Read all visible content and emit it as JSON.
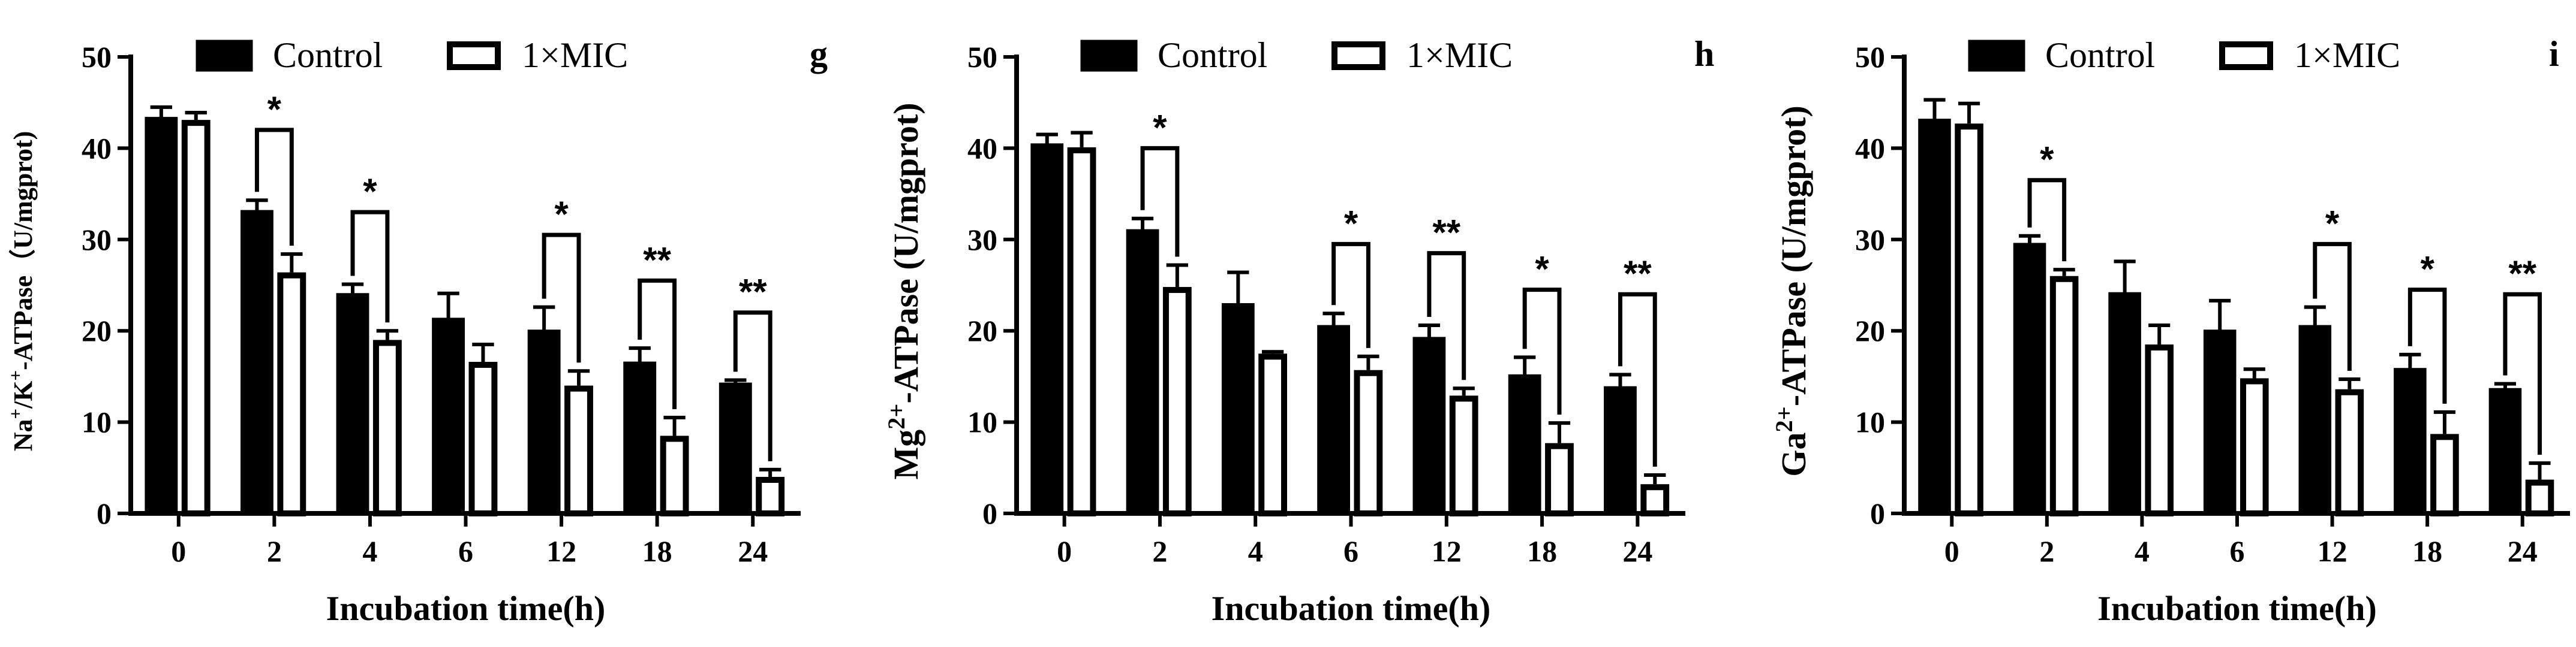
{
  "legend": {
    "control": "Control",
    "mic": "1×MIC"
  },
  "colors": {
    "control": "#000000",
    "mic": "#ffffff",
    "stroke": "#000000"
  },
  "chart_data": [
    {
      "type": "bar",
      "panel": "g",
      "categories": [
        "0",
        "2",
        "4",
        "6",
        "12",
        "18",
        "24"
      ],
      "xlabel": "Incubation time(h)",
      "ylabel_parts": [
        "Na",
        "+",
        "/K",
        "+",
        "-ATPase（U/mgprot)"
      ],
      "ylim": [
        0,
        50
      ],
      "yticks": [
        0,
        10,
        20,
        30,
        40,
        50
      ],
      "series": [
        {
          "name": "Control",
          "values": [
            43.2,
            33.0,
            23.9,
            21.2,
            19.9,
            16.4,
            14.1
          ],
          "errors": [
            1.3,
            1.3,
            1.2,
            2.9,
            2.7,
            1.7,
            0.5
          ]
        },
        {
          "name": "1×MIC",
          "values": [
            43.1,
            26.4,
            19.0,
            16.6,
            14.0,
            8.5,
            4.0
          ],
          "errors": [
            0.8,
            2.0,
            1.0,
            1.9,
            1.6,
            2.0,
            0.8
          ]
        }
      ],
      "significance": [
        {
          "index": 1,
          "label": "*",
          "y": 42
        },
        {
          "index": 2,
          "label": "*",
          "y": 33
        },
        {
          "index": 4,
          "label": "*",
          "y": 30.5
        },
        {
          "index": 5,
          "label": "**",
          "y": 25.5
        },
        {
          "index": 6,
          "label": "**",
          "y": 22
        }
      ]
    },
    {
      "type": "bar",
      "panel": "h",
      "categories": [
        "0",
        "2",
        "4",
        "6",
        "12",
        "18",
        "24"
      ],
      "xlabel": "Incubation time(h)",
      "ylabel_parts": [
        "Mg",
        "2+",
        "-ATPase (U/mgprot)"
      ],
      "ylim": [
        0,
        50
      ],
      "yticks": [
        0,
        10,
        20,
        30,
        40,
        50
      ],
      "series": [
        {
          "name": "Control",
          "values": [
            40.3,
            30.9,
            22.8,
            20.4,
            19.1,
            15.0,
            13.7
          ],
          "errors": [
            1.2,
            1.4,
            3.6,
            1.5,
            1.5,
            2.1,
            1.5
          ]
        },
        {
          "name": "1×MIC",
          "values": [
            40.1,
            24.8,
            17.5,
            15.7,
            12.9,
            7.7,
            3.2
          ],
          "errors": [
            1.6,
            2.4,
            0.2,
            1.5,
            0.8,
            2.2,
            1.0
          ]
        }
      ],
      "significance": [
        {
          "index": 1,
          "label": "*",
          "y": 40
        },
        {
          "index": 3,
          "label": "*",
          "y": 29.5
        },
        {
          "index": 4,
          "label": "**",
          "y": 28.5
        },
        {
          "index": 5,
          "label": "*",
          "y": 24.5
        },
        {
          "index": 6,
          "label": "**",
          "y": 24
        }
      ]
    },
    {
      "type": "bar",
      "panel": "i",
      "categories": [
        "0",
        "2",
        "4",
        "6",
        "12",
        "18",
        "24"
      ],
      "xlabel": "Incubation time(h)",
      "ylabel_parts": [
        "Ga",
        "2+",
        "-ATPase (U/mgprot)"
      ],
      "ylim": [
        0,
        50
      ],
      "yticks": [
        0,
        10,
        20,
        30,
        40,
        50
      ],
      "series": [
        {
          "name": "Control",
          "values": [
            43.0,
            29.4,
            24.0,
            19.9,
            20.4,
            15.7,
            13.5
          ],
          "errors": [
            2.3,
            1.0,
            3.6,
            3.4,
            2.2,
            1.7,
            0.7
          ]
        },
        {
          "name": "1×MIC",
          "values": [
            42.7,
            26.0,
            18.5,
            14.8,
            13.6,
            8.7,
            3.7
          ],
          "errors": [
            2.2,
            0.7,
            2.1,
            1.0,
            1.1,
            2.4,
            1.8
          ]
        }
      ],
      "significance": [
        {
          "index": 1,
          "label": "*",
          "y": 36.5
        },
        {
          "index": 4,
          "label": "*",
          "y": 29.5
        },
        {
          "index": 5,
          "label": "*",
          "y": 24.5
        },
        {
          "index": 6,
          "label": "**",
          "y": 24
        }
      ]
    }
  ]
}
